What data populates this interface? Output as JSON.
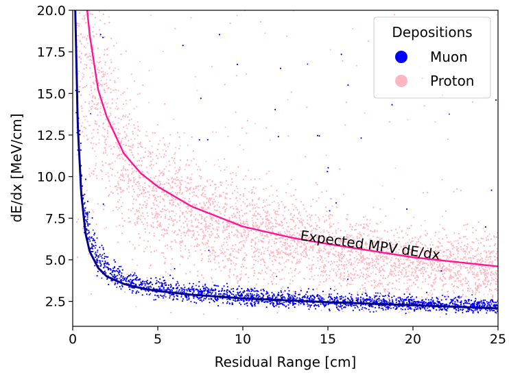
{
  "chart_data": {
    "type": "scatter",
    "xlabel": "Residual Range [cm]",
    "ylabel": "dE/dx [MeV/cm]",
    "xlim": [
      0,
      25
    ],
    "ylim": [
      1.0,
      20.0
    ],
    "xticks": [
      "0",
      "5",
      "10",
      "15",
      "20",
      "25"
    ],
    "yticks": [
      "2.5",
      "5.0",
      "7.5",
      "10.0",
      "12.5",
      "15.0",
      "17.5",
      "20.0"
    ],
    "grid": false,
    "legend": {
      "title": "Depositions",
      "placement": "top-right",
      "entries": [
        {
          "label": "Muon",
          "color": "#0000ff"
        },
        {
          "label": "Proton",
          "color": "#ffb6c1"
        }
      ]
    },
    "series": [
      {
        "name": "Muon",
        "kind": "scatter-band",
        "color": "#0000ff",
        "points": [
          [
            0.2,
            15.0
          ],
          [
            0.5,
            9.0
          ],
          [
            1.0,
            6.0
          ],
          [
            1.5,
            4.8
          ],
          [
            2,
            4.2
          ],
          [
            3,
            3.6
          ],
          [
            4,
            3.3
          ],
          [
            5,
            3.1
          ],
          [
            7,
            2.9
          ],
          [
            10,
            2.6
          ],
          [
            15,
            2.4
          ],
          [
            20,
            2.25
          ],
          [
            25,
            2.1
          ]
        ]
      },
      {
        "name": "Proton",
        "kind": "scatter-band",
        "color": "#ffb6c1",
        "points": [
          [
            0.5,
            19.5
          ],
          [
            1,
            17.5
          ],
          [
            2,
            14.0
          ],
          [
            3,
            11.5
          ],
          [
            4,
            10.2
          ],
          [
            5,
            9.3
          ],
          [
            7,
            8.0
          ],
          [
            10,
            7.0
          ],
          [
            15,
            5.8
          ],
          [
            20,
            5.0
          ],
          [
            25,
            4.6
          ]
        ]
      },
      {
        "name": "Muon expected MPV",
        "kind": "line",
        "color": "#00008b",
        "points": [
          [
            0.15,
            20.0
          ],
          [
            0.3,
            13.0
          ],
          [
            0.5,
            9.0
          ],
          [
            0.75,
            6.6
          ],
          [
            1.0,
            5.5
          ],
          [
            1.5,
            4.5
          ],
          [
            2.0,
            4.0
          ],
          [
            3.0,
            3.55
          ],
          [
            4.0,
            3.3
          ],
          [
            5.0,
            3.12
          ],
          [
            7.0,
            2.9
          ],
          [
            10.0,
            2.68
          ],
          [
            15.0,
            2.45
          ],
          [
            20.0,
            2.27
          ],
          [
            25.0,
            2.08
          ]
        ]
      },
      {
        "name": "Proton expected MPV",
        "kind": "line",
        "color": "#ff1493",
        "points": [
          [
            0.85,
            20.0
          ],
          [
            1.0,
            18.5
          ],
          [
            1.5,
            15.2
          ],
          [
            2.0,
            13.6
          ],
          [
            3.0,
            11.4
          ],
          [
            4.0,
            10.2
          ],
          [
            5.0,
            9.4
          ],
          [
            7.0,
            8.2
          ],
          [
            10.0,
            7.0
          ],
          [
            13.0,
            6.3
          ],
          [
            15.0,
            5.95
          ],
          [
            20.0,
            5.15
          ],
          [
            25.0,
            4.6
          ]
        ]
      }
    ],
    "annotations": [
      {
        "text": "Expected MPV dE/dx",
        "x": 19.0,
        "y": 5.4
      }
    ]
  }
}
